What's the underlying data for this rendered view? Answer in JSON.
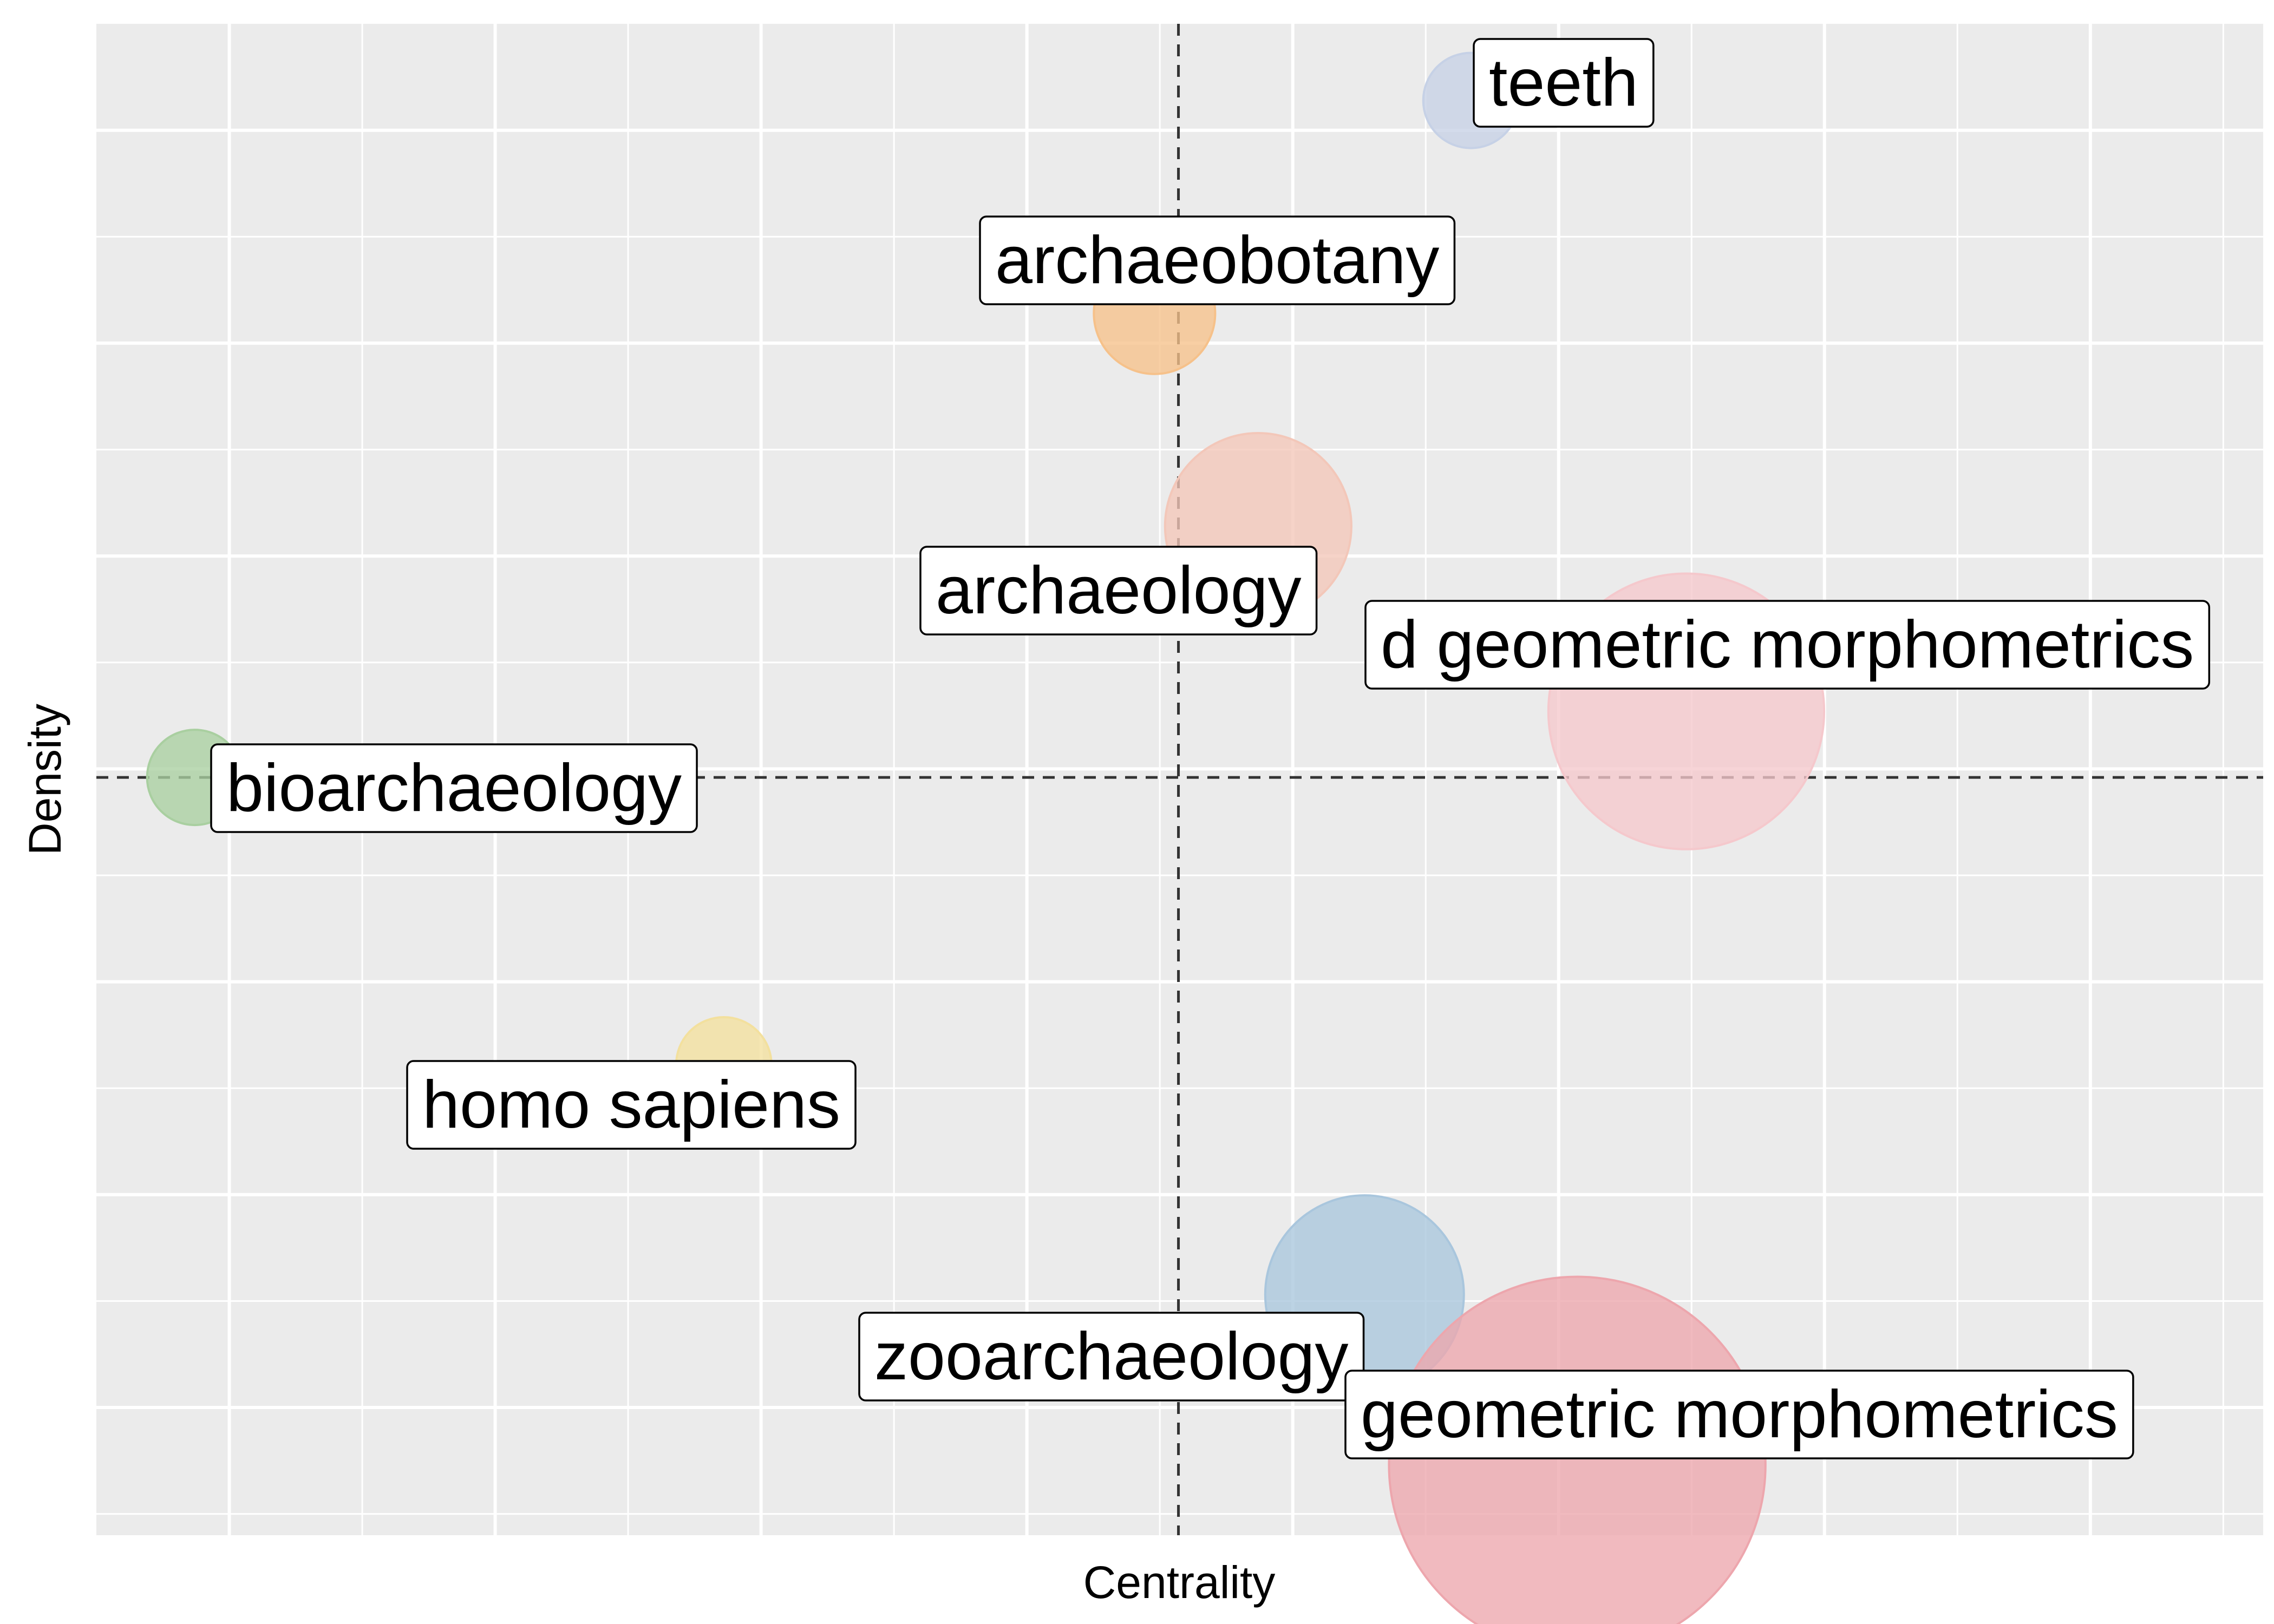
{
  "chart_data": {
    "type": "scatter",
    "xlabel": "Centrality",
    "ylabel": "Density",
    "xlim": [
      0,
      8.15
    ],
    "ylim": [
      0,
      7.1
    ],
    "x_ref_line": 4.07,
    "y_ref_line": 3.56,
    "grid": true,
    "tick_labels_shown": false,
    "points": [
      {
        "label": "teeth",
        "x": 5.17,
        "y": 6.74,
        "size": 1,
        "color": "#c6d1e6"
      },
      {
        "label": "archaeobotany",
        "x": 3.98,
        "y": 5.74,
        "size": 2,
        "color": "#f6c18a"
      },
      {
        "label": "archaeology",
        "x": 4.37,
        "y": 4.74,
        "size": 6,
        "color": "#f3c7b9"
      },
      {
        "label": "d geometric morphometrics",
        "x": 5.98,
        "y": 3.87,
        "size": 15,
        "color": "#f5c8cc"
      },
      {
        "label": "bioarchaeology",
        "x": 0.37,
        "y": 3.56,
        "size": 1,
        "color": "#a9cfa0"
      },
      {
        "label": "homo sapiens",
        "x": 2.36,
        "y": 2.21,
        "size": 1,
        "color": "#f3e09e"
      },
      {
        "label": "zooarchaeology",
        "x": 4.77,
        "y": 1.13,
        "size": 7,
        "color": "#a9c6dd"
      },
      {
        "label": "geometric morphometrics",
        "x": 5.57,
        "y": 0.33,
        "size": 30,
        "color": "#eda6ad"
      }
    ]
  }
}
